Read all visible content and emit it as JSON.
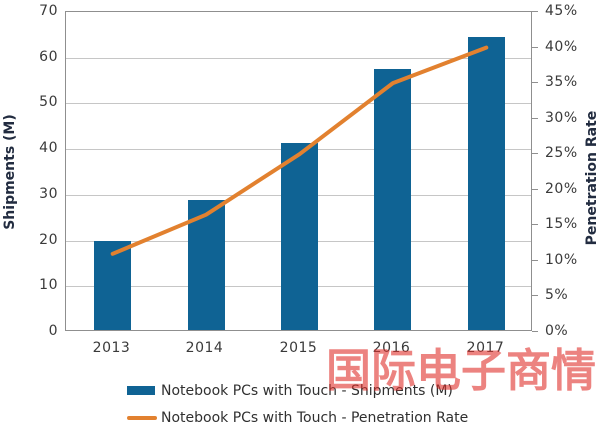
{
  "colors": {
    "bar": "#0f6394",
    "line": "#e2812f",
    "gridline": "#c6c6c6",
    "plot_border": "#8f8f8f",
    "tick_text": "#3a3a3a",
    "axis_title_text": "#222c40",
    "watermark_red": "#e0312b"
  },
  "chart_data": {
    "type": "bar",
    "subtype": "combo-bar-line-dual-axis",
    "categories": [
      "2013",
      "2014",
      "2015",
      "2016",
      "2017"
    ],
    "series": [
      {
        "name": "Notebook PCs with Touch - Shipments (M)",
        "type": "bar",
        "axis": "left",
        "values": [
          19.5,
          28.5,
          41,
          57,
          64
        ]
      },
      {
        "name": "Notebook PCs with Touch - Penetration Rate",
        "type": "line",
        "axis": "right",
        "values": [
          11,
          16.5,
          25,
          35,
          40
        ],
        "unit": "%"
      }
    ],
    "left_axis": {
      "title": "Shipments  (M)",
      "min": 0,
      "max": 70,
      "step": 10,
      "ticks": [
        "0",
        "10",
        "20",
        "30",
        "40",
        "50",
        "60",
        "70"
      ]
    },
    "right_axis": {
      "title": "Penetration Rate",
      "min": 0,
      "max": 45,
      "step": 5,
      "ticks": [
        "0%",
        "5%",
        "10%",
        "15%",
        "20%",
        "25%",
        "30%",
        "35%",
        "40%",
        "45%"
      ]
    },
    "grid": "horizontal-on",
    "legend_position": "bottom",
    "title": ""
  },
  "legend": {
    "items": [
      {
        "label": "Notebook PCs with Touch - Shipments (M)",
        "swatch": "bar"
      },
      {
        "label": "Notebook PCs with Touch - Penetration Rate",
        "swatch": "line"
      }
    ]
  },
  "watermark": {
    "text": "国际电子商情"
  }
}
